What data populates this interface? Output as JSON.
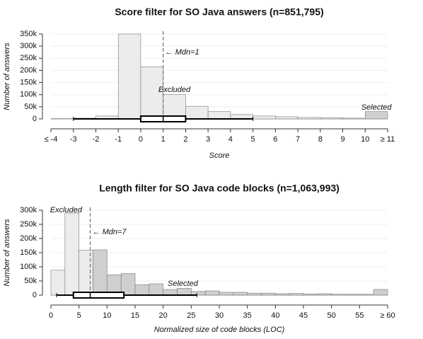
{
  "chart_data": [
    {
      "type": "histogram",
      "title": "Score filter for SO Java answers (n=851,795)",
      "x_label": "Score",
      "y_label": "Number of answers",
      "bins": [
        -4,
        -3,
        -2,
        -1,
        0,
        1,
        2,
        3,
        4,
        5,
        6,
        7,
        8,
        9,
        10,
        11
      ],
      "values": [
        1000,
        3000,
        12000,
        350000,
        215000,
        100000,
        52000,
        30000,
        18000,
        12000,
        9000,
        6000,
        5000,
        3000,
        30000
      ],
      "colors": [
        "#ececec",
        "#ececec",
        "#ececec",
        "#ececec",
        "#ececec",
        "#ececec",
        "#ececec",
        "#ececec",
        "#ececec",
        "#ececec",
        "#ececec",
        "#ececec",
        "#ececec",
        "#ececec",
        "#cfcfcf"
      ],
      "xlim": [
        -4,
        11
      ],
      "xticks": [
        {
          "value": -4,
          "label": "≤ -4"
        },
        -3,
        -2,
        -1,
        0,
        1,
        2,
        3,
        4,
        5,
        6,
        7,
        8,
        9,
        10,
        {
          "value": 11,
          "label": "≥ 11"
        }
      ],
      "ylim": [
        0,
        350000
      ],
      "yticks": [
        0,
        {
          "value": 50000,
          "label": "50k"
        },
        {
          "value": 100000,
          "label": "100k"
        },
        {
          "value": 150000,
          "label": "150k"
        },
        {
          "value": 200000,
          "label": "200k"
        },
        {
          "value": 250000,
          "label": "250k"
        },
        {
          "value": 300000,
          "label": "300k"
        },
        {
          "value": 350000,
          "label": "350k"
        }
      ],
      "grid": true,
      "boxplot": {
        "whisker_low": -3,
        "q1": 0,
        "median": 1,
        "q3": 2,
        "whisker_high": 5
      },
      "median_label": "← Mdn=1",
      "excluded_label": "Excluded",
      "selected_label": "Selected"
    },
    {
      "type": "histogram",
      "title": "Length filter for SO Java code blocks (n=1,063,993)",
      "x_label": "Normalized size of code blocks (LOC)",
      "y_label": "Number of answers",
      "bins": [
        0,
        2.5,
        5,
        7.5,
        10,
        12.5,
        15,
        17.5,
        20,
        22.5,
        25,
        27.5,
        30,
        32.5,
        35,
        37.5,
        40,
        42.5,
        45,
        47.5,
        50,
        52.5,
        55,
        57.5,
        60
      ],
      "values": [
        88000,
        290000,
        158000,
        160000,
        72000,
        76000,
        37000,
        40000,
        20000,
        24000,
        13000,
        15000,
        10000,
        10000,
        7000,
        7000,
        5000,
        6000,
        4000,
        5000,
        3000,
        3000,
        3000,
        20000
      ],
      "colors": [
        "#ececec",
        "#ececec",
        "#ececec",
        "#cfcfcf",
        "#cfcfcf",
        "#cfcfcf",
        "#cfcfcf",
        "#cfcfcf",
        "#cfcfcf",
        "#cfcfcf",
        "#cfcfcf",
        "#cfcfcf",
        "#cfcfcf",
        "#cfcfcf",
        "#cfcfcf",
        "#cfcfcf",
        "#cfcfcf",
        "#cfcfcf",
        "#cfcfcf",
        "#cfcfcf",
        "#cfcfcf",
        "#cfcfcf",
        "#cfcfcf",
        "#cfcfcf"
      ],
      "xlim": [
        0,
        60
      ],
      "xticks": [
        0,
        5,
        10,
        15,
        20,
        25,
        30,
        35,
        40,
        45,
        50,
        55,
        {
          "value": 60,
          "label": "≥ 60"
        }
      ],
      "ylim": [
        0,
        300000
      ],
      "yticks": [
        0,
        {
          "value": 50000,
          "label": "50k"
        },
        {
          "value": 100000,
          "label": "100k"
        },
        {
          "value": 150000,
          "label": "150k"
        },
        {
          "value": 200000,
          "label": "200k"
        },
        {
          "value": 250000,
          "label": "250k"
        },
        {
          "value": 300000,
          "label": "300k"
        }
      ],
      "grid": true,
      "boxplot": {
        "whisker_low": 1,
        "q1": 4,
        "median": 7,
        "q3": 13,
        "whisker_high": 26
      },
      "median_label": "← Mdn=7",
      "excluded_label": "Excluded",
      "selected_label": "Selected"
    }
  ]
}
